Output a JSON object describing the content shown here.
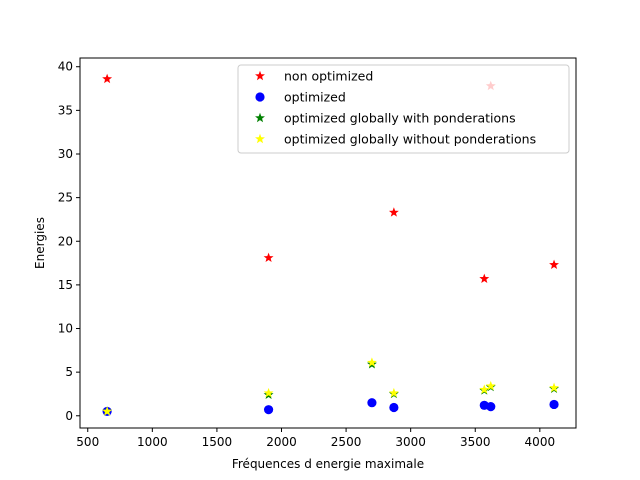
{
  "chart_data": {
    "type": "scatter",
    "title": "",
    "xlabel": "Fréquences d energie maximale",
    "ylabel": "Energies",
    "xlim": [
      440,
      4280
    ],
    "ylim": [
      -1.4,
      41
    ],
    "xticks": [
      500,
      1000,
      1500,
      2000,
      2500,
      3000,
      3500,
      4000
    ],
    "yticks": [
      0,
      5,
      10,
      15,
      20,
      25,
      30,
      35,
      40
    ],
    "grid": false,
    "legend_position": "top-right",
    "series": [
      {
        "name": "non optimized",
        "marker": "star",
        "color": "#ff0000",
        "points": [
          {
            "x": 650,
            "y": 38.6
          },
          {
            "x": 1900,
            "y": 18.1
          },
          {
            "x": 2870,
            "y": 23.3
          },
          {
            "x": 3570,
            "y": 15.7
          },
          {
            "x": 3620,
            "y": 37.8
          },
          {
            "x": 4110,
            "y": 17.3
          }
        ]
      },
      {
        "name": "optimized",
        "marker": "circle",
        "color": "#0000ff",
        "points": [
          {
            "x": 650,
            "y": 0.5
          },
          {
            "x": 1900,
            "y": 0.7
          },
          {
            "x": 2700,
            "y": 1.5
          },
          {
            "x": 2870,
            "y": 0.95
          },
          {
            "x": 3570,
            "y": 1.2
          },
          {
            "x": 3620,
            "y": 1.05
          },
          {
            "x": 4110,
            "y": 1.3
          }
        ]
      },
      {
        "name": "optimized globally with ponderations",
        "marker": "star",
        "color": "#008000",
        "points": [
          {
            "x": 650,
            "y": 0.5
          },
          {
            "x": 1900,
            "y": 2.4
          },
          {
            "x": 2700,
            "y": 5.9
          },
          {
            "x": 2870,
            "y": 2.5
          },
          {
            "x": 3570,
            "y": 2.9
          },
          {
            "x": 3620,
            "y": 3.3
          },
          {
            "x": 4110,
            "y": 3.1
          }
        ]
      },
      {
        "name": "optimized globally without ponderations",
        "marker": "star",
        "color": "#ffff00",
        "points": [
          {
            "x": 650,
            "y": 0.5
          },
          {
            "x": 1900,
            "y": 2.6
          },
          {
            "x": 2700,
            "y": 6.1
          },
          {
            "x": 2870,
            "y": 2.6
          },
          {
            "x": 3570,
            "y": 3.0
          },
          {
            "x": 3620,
            "y": 3.4
          },
          {
            "x": 4110,
            "y": 3.2
          }
        ]
      }
    ]
  }
}
